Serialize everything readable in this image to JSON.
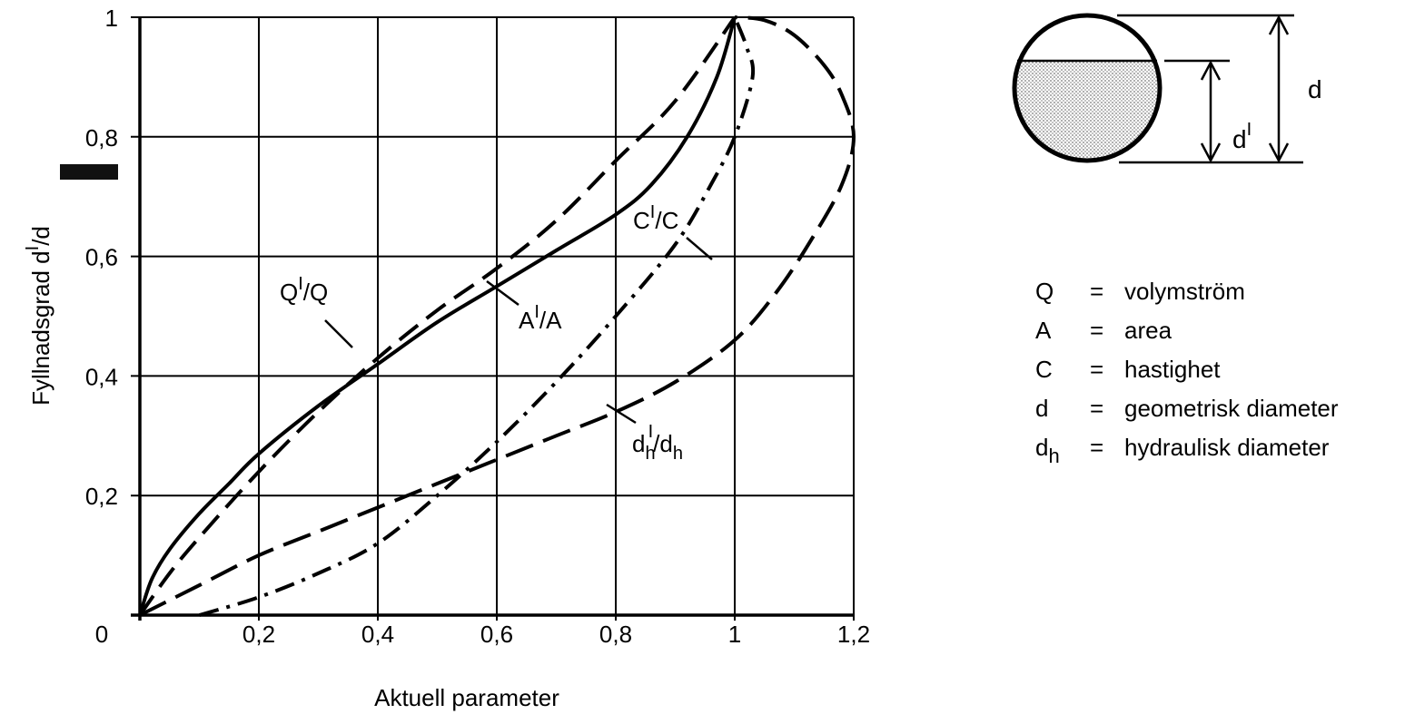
{
  "chart_data": {
    "type": "line",
    "xlabel": "Aktuell parameter",
    "ylabel": "Fyllnadsgrad d'/d",
    "xlim": [
      0,
      1.2
    ],
    "ylim": [
      0,
      1
    ],
    "grid": true,
    "x_ticks": [
      "0",
      "0,2",
      "0,4",
      "0,6",
      "0,8",
      "1",
      "1,2"
    ],
    "y_ticks": [
      "0,2",
      "0,4",
      "0,6",
      "0,8",
      "1"
    ],
    "series": [
      {
        "name": "Q'/Q",
        "label_text": "Q",
        "label_denom": "/Q",
        "style": "solid",
        "points": [
          [
            0,
            0
          ],
          [
            0.02,
            0.06
          ],
          [
            0.05,
            0.11
          ],
          [
            0.1,
            0.17
          ],
          [
            0.15,
            0.22
          ],
          [
            0.2,
            0.27
          ],
          [
            0.3,
            0.35
          ],
          [
            0.4,
            0.42
          ],
          [
            0.5,
            0.49
          ],
          [
            0.6,
            0.55
          ],
          [
            0.7,
            0.61
          ],
          [
            0.8,
            0.67
          ],
          [
            0.86,
            0.72
          ],
          [
            0.92,
            0.8
          ],
          [
            0.97,
            0.9
          ],
          [
            1.0,
            1.0
          ]
        ]
      },
      {
        "name": "A'/A",
        "label_text": "A",
        "label_denom": "/A",
        "style": "dashed",
        "points": [
          [
            0,
            0
          ],
          [
            0.05,
            0.07
          ],
          [
            0.1,
            0.13
          ],
          [
            0.2,
            0.24
          ],
          [
            0.3,
            0.34
          ],
          [
            0.4,
            0.43
          ],
          [
            0.5,
            0.51
          ],
          [
            0.6,
            0.58
          ],
          [
            0.7,
            0.66
          ],
          [
            0.8,
            0.76
          ],
          [
            0.9,
            0.86
          ],
          [
            1.0,
            1.0
          ]
        ]
      },
      {
        "name": "C'/C",
        "label_text": "C",
        "label_denom": "/C",
        "style": "dashdot",
        "points": [
          [
            0.1,
            0.0
          ],
          [
            0.2,
            0.03
          ],
          [
            0.3,
            0.07
          ],
          [
            0.4,
            0.12
          ],
          [
            0.5,
            0.2
          ],
          [
            0.6,
            0.29
          ],
          [
            0.7,
            0.39
          ],
          [
            0.8,
            0.5
          ],
          [
            0.9,
            0.62
          ],
          [
            0.96,
            0.72
          ],
          [
            1.0,
            0.8
          ],
          [
            1.03,
            0.9
          ],
          [
            1.02,
            0.95
          ],
          [
            1.0,
            1.0
          ]
        ]
      },
      {
        "name": "dh'/dh",
        "label_text": "d",
        "label_denom": "/d",
        "label_sub": "h",
        "style": "longdash",
        "points": [
          [
            0,
            0
          ],
          [
            0.1,
            0.05
          ],
          [
            0.2,
            0.1
          ],
          [
            0.3,
            0.14
          ],
          [
            0.4,
            0.18
          ],
          [
            0.5,
            0.22
          ],
          [
            0.6,
            0.26
          ],
          [
            0.7,
            0.3
          ],
          [
            0.8,
            0.34
          ],
          [
            0.9,
            0.39
          ],
          [
            1.0,
            0.46
          ],
          [
            1.07,
            0.54
          ],
          [
            1.13,
            0.63
          ],
          [
            1.18,
            0.72
          ],
          [
            1.2,
            0.8
          ],
          [
            1.18,
            0.87
          ],
          [
            1.15,
            0.92
          ],
          [
            1.1,
            0.97
          ],
          [
            1.05,
            0.995
          ],
          [
            1.0,
            1.0
          ]
        ]
      }
    ]
  },
  "diagram": {
    "label_d": "d",
    "label_dprime": "d"
  },
  "legend": [
    {
      "sym": "Q",
      "eq": "=",
      "text": "volymström"
    },
    {
      "sym": "A",
      "eq": "=",
      "text": "area"
    },
    {
      "sym": "C",
      "eq": "=",
      "text": "hastighet"
    },
    {
      "sym": "d",
      "eq": "=",
      "text": "geometrisk diameter"
    },
    {
      "sym": "d",
      "sub": "h",
      "eq": "=",
      "text": "hydraulisk diameter"
    }
  ]
}
